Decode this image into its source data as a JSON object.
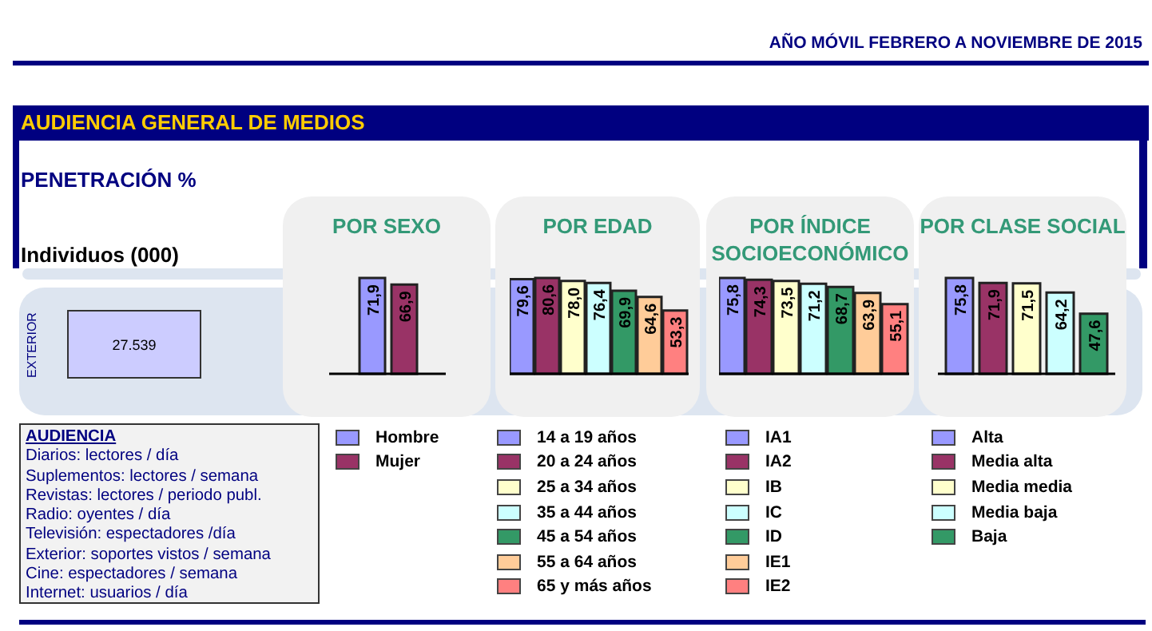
{
  "chart_data": [
    {
      "type": "other",
      "title": "Individuos (000)",
      "annotations": [
        "AÑO MÓVIL FEBRERO A NOVIEMBRE DE 2015",
        "AUDIENCIA GENERAL DE MEDIOS",
        "PENETRACIÓN %",
        "AUDIENCIA",
        "Diarios: lectores / día",
        "Suplementos: lectores / semana",
        "Revistas: lectores / periodo  publ.",
        "Radio: oyentes / día",
        "Televisión: espectadores /día",
        "Exterior: soportes vistos / semana",
        "Cine: espectadores / semana",
        "Internet: usuarios / día",
        "EXTERIOR",
        "27.539"
      ]
    },
    {
      "type": "bar",
      "title": "POR SEXO",
      "categories": [
        null
      ],
      "legend": "bottom",
      "series": [
        {
          "name": "Hombre",
          "color": "#9999ff",
          "values": [
            71.9
          ],
          "value_labels": [
            "71,9"
          ]
        },
        {
          "name": "Mujer",
          "color": "#993366",
          "values": [
            66.9
          ],
          "value_labels": [
            "66,9"
          ]
        }
      ]
    },
    {
      "type": "bar",
      "title": "POR EDAD",
      "categories": [
        null
      ],
      "legend": "bottom",
      "series": [
        {
          "name": "14 a 19 años",
          "color": "#9999ff",
          "values": [
            79.6
          ],
          "value_labels": [
            "79,6"
          ]
        },
        {
          "name": "20 a 24 años",
          "color": "#993366",
          "values": [
            80.6
          ],
          "value_labels": [
            "80,6"
          ]
        },
        {
          "name": "25 a 34 años",
          "color": "#ffffcc",
          "values": [
            78.0
          ],
          "value_labels": [
            "78,0"
          ]
        },
        {
          "name": "35 a 44 años",
          "color": "#ccffff",
          "values": [
            76.4
          ],
          "value_labels": [
            "76,4"
          ]
        },
        {
          "name": "45 a 54 años",
          "color": "#339966",
          "values": [
            69.9
          ],
          "value_labels": [
            "69,9"
          ]
        },
        {
          "name": "55 a 64 años",
          "color": "#ffcc99",
          "values": [
            64.6
          ],
          "value_labels": [
            "64,6"
          ]
        },
        {
          "name": "65 y más años",
          "color": "#ff8080",
          "values": [
            53.3
          ],
          "value_labels": [
            "53,3"
          ]
        }
      ]
    },
    {
      "type": "bar",
      "title": "POR ÍNDICE SOCIOECONÓMICO",
      "categories": [
        null
      ],
      "legend": "bottom",
      "series": [
        {
          "name": "IA1",
          "color": "#9999ff",
          "values": [
            75.8
          ],
          "value_labels": [
            "75,8"
          ]
        },
        {
          "name": "IA2",
          "color": "#993366",
          "values": [
            74.3
          ],
          "value_labels": [
            "74,3"
          ]
        },
        {
          "name": "IB",
          "color": "#ffffcc",
          "values": [
            73.5
          ],
          "value_labels": [
            "73,5"
          ]
        },
        {
          "name": "IC",
          "color": "#ccffff",
          "values": [
            71.2
          ],
          "value_labels": [
            "71,2"
          ]
        },
        {
          "name": "ID",
          "color": "#339966",
          "values": [
            68.7
          ],
          "value_labels": [
            "68,7"
          ]
        },
        {
          "name": "IE1",
          "color": "#ffcc99",
          "values": [
            63.9
          ],
          "value_labels": [
            "63,9"
          ]
        },
        {
          "name": "IE2",
          "color": "#ff8080",
          "values": [
            55.1
          ],
          "value_labels": [
            "55,1"
          ]
        }
      ]
    },
    {
      "type": "bar",
      "title": "POR CLASE SOCIAL",
      "categories": [
        null
      ],
      "legend": "bottom",
      "series": [
        {
          "name": "Alta",
          "color": "#9999ff",
          "values": [
            75.8
          ],
          "value_labels": [
            "75,8"
          ]
        },
        {
          "name": "Media alta",
          "color": "#993366",
          "values": [
            71.9
          ],
          "value_labels": [
            "71,9"
          ]
        },
        {
          "name": "Media media",
          "color": "#ffffcc",
          "values": [
            71.5
          ],
          "value_labels": [
            "71,5"
          ]
        },
        {
          "name": "Media baja",
          "color": "#ccffff",
          "values": [
            64.2
          ],
          "value_labels": [
            "64,2"
          ]
        },
        {
          "name": "Baja",
          "color": "#339966",
          "values": [
            47.6
          ],
          "value_labels": [
            "47,6"
          ]
        }
      ]
    }
  ]
}
